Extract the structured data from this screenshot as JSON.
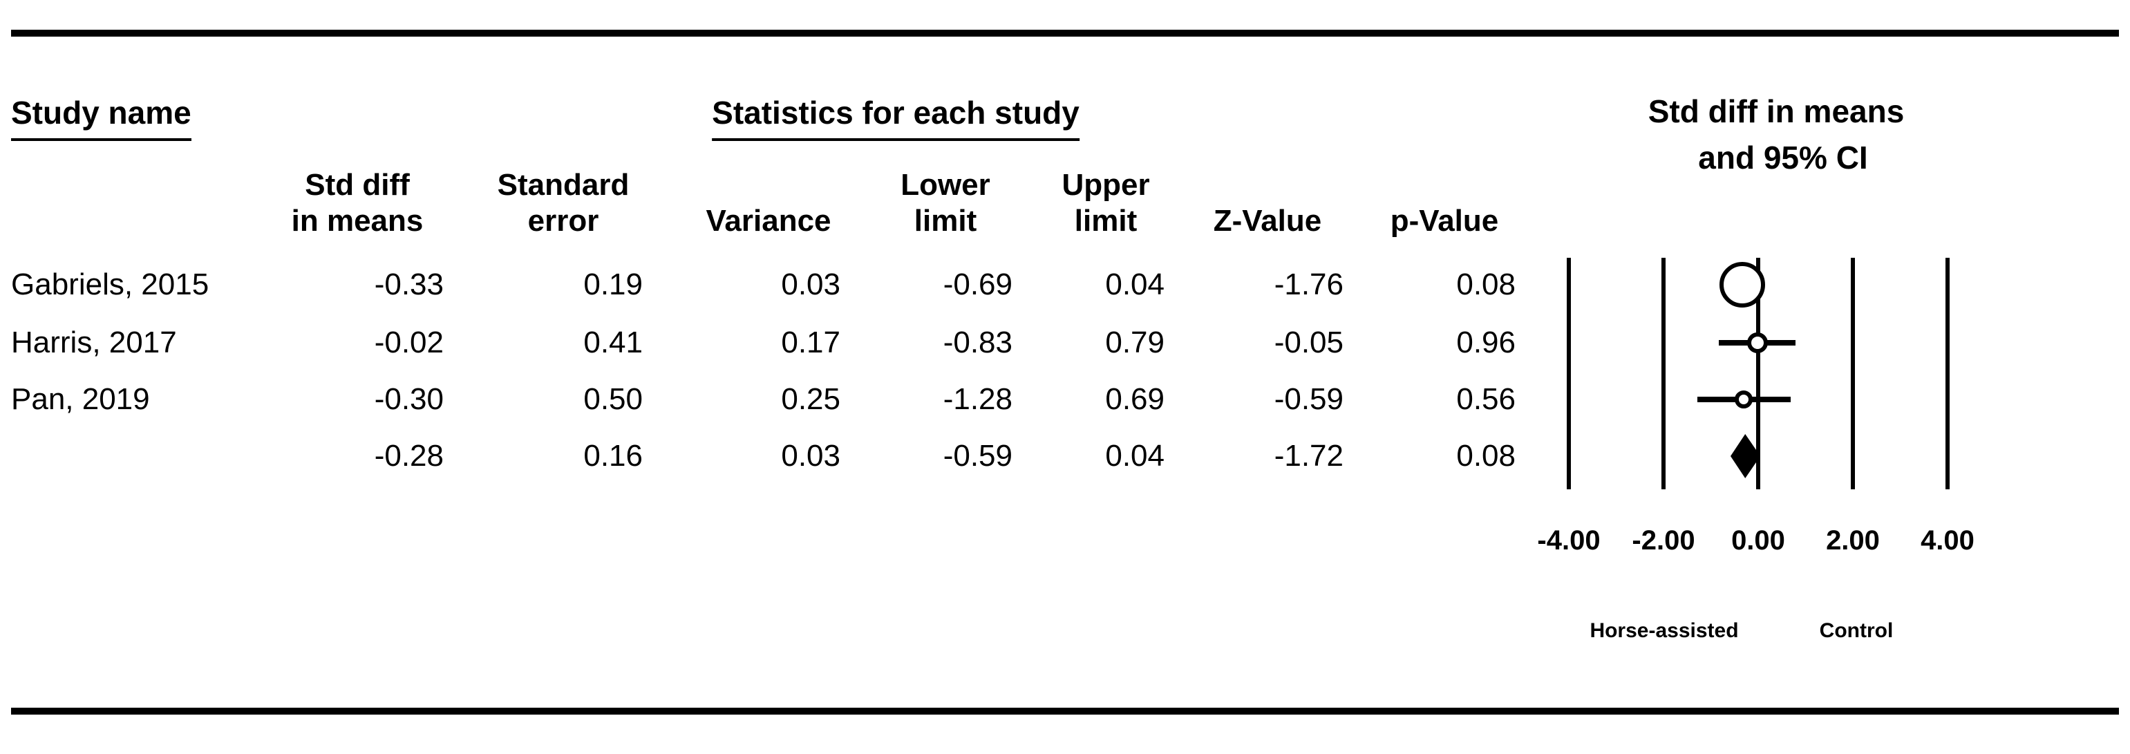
{
  "figure": {
    "study_col_title": "Study name",
    "stats_col_title": "Statistics for each study",
    "plot_title_line1": "Std diff in means",
    "plot_title_line2": "and 95% CI"
  },
  "columns": {
    "std_diff": "Std diff\nin means",
    "std_err": "Standard\nerror",
    "variance": "Variance",
    "lower": "Lower\nlimit",
    "upper": "Upper\nlimit",
    "z": "Z-Value",
    "p": "p-Value"
  },
  "rows": [
    {
      "study": "Gabriels, 2015",
      "std_diff": "-0.33",
      "std_err": "0.19",
      "variance": "0.03",
      "lower": "-0.69",
      "upper": "0.04",
      "z": "-1.76",
      "p": "0.08"
    },
    {
      "study": "Harris, 2017",
      "std_diff": "-0.02",
      "std_err": "0.41",
      "variance": "0.17",
      "lower": "-0.83",
      "upper": "0.79",
      "z": "-0.05",
      "p": "0.96"
    },
    {
      "study": "Pan, 2019",
      "std_diff": "-0.30",
      "std_err": "0.50",
      "variance": "0.25",
      "lower": "-1.28",
      "upper": "0.69",
      "z": "-0.59",
      "p": "0.56"
    },
    {
      "study": "",
      "std_diff": "-0.28",
      "std_err": "0.16",
      "variance": "0.03",
      "lower": "-0.59",
      "upper": "0.04",
      "z": "-1.72",
      "p": "0.08"
    }
  ],
  "chart_data": {
    "type": "forest",
    "effect_measure": "Std diff in means",
    "xlim": [
      -4,
      4
    ],
    "tick_values": [
      -4,
      -2,
      0,
      2,
      4
    ],
    "tick_labels": [
      "-4.00",
      "-2.00",
      "0.00",
      "2.00",
      "4.00"
    ],
    "group_label_left": "Horse-assisted",
    "group_label_right": "Control",
    "studies": [
      {
        "name": "Gabriels, 2015",
        "effect": -0.33,
        "lower": -0.69,
        "upper": 0.04,
        "marker_radius": 33
      },
      {
        "name": "Harris, 2017",
        "effect": -0.02,
        "lower": -0.83,
        "upper": 0.79,
        "marker_radius": 15
      },
      {
        "name": "Pan, 2019",
        "effect": -0.3,
        "lower": -1.28,
        "upper": 0.69,
        "marker_radius": 13
      }
    ],
    "summary": {
      "effect": -0.28,
      "lower": -0.59,
      "upper": 0.04
    }
  },
  "colors": {
    "ink": "#000000",
    "background": "#ffffff"
  }
}
